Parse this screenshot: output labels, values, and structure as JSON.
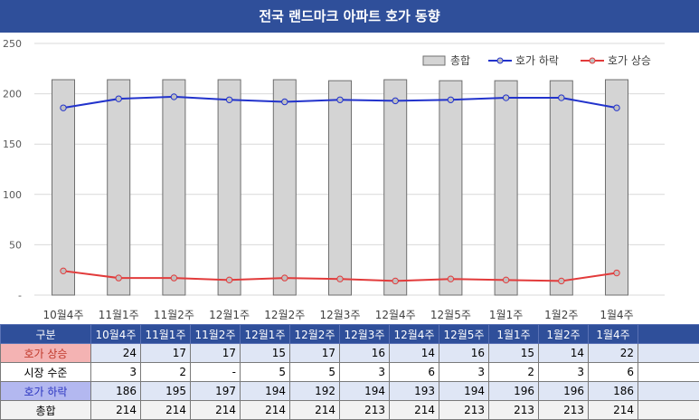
{
  "title": "전국 랜드마크 아파트 호가 동향",
  "colors": {
    "header": "#2f4f9a",
    "fall": "#2233cc",
    "rise": "#e23b3b",
    "bar": "#d4d4d4"
  },
  "chart_data": {
    "type": "bar",
    "categories": [
      "10월4주",
      "11월1주",
      "11월2주",
      "12월1주",
      "12월2주",
      "12월3주",
      "12월4주",
      "12월5주",
      "1월1주",
      "1월2주",
      "1월4주"
    ],
    "ylim": [
      0,
      250
    ],
    "yticks": [
      "-",
      "50",
      "100",
      "150",
      "200",
      "250"
    ],
    "ytick_values": [
      0,
      50,
      100,
      150,
      200,
      250
    ],
    "legend_position": "top-right",
    "series": [
      {
        "name": "총합",
        "kind": "bar",
        "values": [
          214,
          214,
          214,
          214,
          214,
          213,
          214,
          213,
          213,
          213,
          214
        ]
      },
      {
        "name": "호가 하락",
        "kind": "line",
        "color": "#2233cc",
        "values": [
          186,
          195,
          197,
          194,
          192,
          194,
          193,
          194,
          196,
          196,
          186
        ]
      },
      {
        "name": "호가 상승",
        "kind": "line",
        "color": "#e23b3b",
        "values": [
          24,
          17,
          17,
          15,
          17,
          16,
          14,
          16,
          15,
          14,
          22
        ]
      }
    ]
  },
  "table": {
    "header_label": "구분",
    "columns": [
      "10월4주",
      "11월1주",
      "11월2주",
      "12월1주",
      "12월2주",
      "12월3주",
      "12월4주",
      "12월5주",
      "1월1주",
      "1월2주",
      "1월4주"
    ],
    "rows": [
      {
        "label": "호가 상승",
        "values": [
          "24",
          "17",
          "17",
          "15",
          "17",
          "16",
          "14",
          "16",
          "15",
          "14",
          "22"
        ]
      },
      {
        "label": "시장 수준",
        "values": [
          "3",
          "2",
          "-",
          "5",
          "5",
          "3",
          "6",
          "3",
          "2",
          "3",
          "6"
        ]
      },
      {
        "label": "호가 하락",
        "values": [
          "186",
          "195",
          "197",
          "194",
          "192",
          "194",
          "193",
          "194",
          "196",
          "196",
          "186"
        ]
      },
      {
        "label": "총합",
        "values": [
          "214",
          "214",
          "214",
          "214",
          "214",
          "213",
          "214",
          "213",
          "213",
          "213",
          "214"
        ]
      }
    ]
  }
}
